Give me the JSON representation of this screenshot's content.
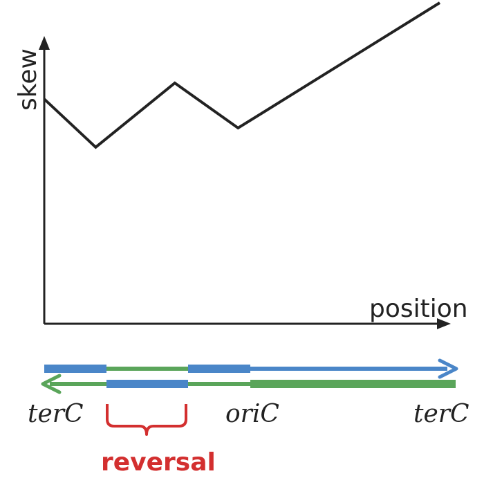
{
  "axes": {
    "y_label": "skew",
    "x_label": "position"
  },
  "skew_curve": {
    "description_points": [
      [
        0,
        0.7
      ],
      [
        0.13,
        0.55
      ],
      [
        0.33,
        0.75
      ],
      [
        0.49,
        0.61
      ],
      [
        1,
        1
      ]
    ]
  },
  "loci": {
    "left": "terC",
    "middle": "oriC",
    "right": "terC"
  },
  "annotation": {
    "reversal": "reversal"
  },
  "colors": {
    "curve": "#222222",
    "blue_strand": "#4a86c8",
    "green_strand": "#5aa55a",
    "reversal": "#d32f2f"
  }
}
